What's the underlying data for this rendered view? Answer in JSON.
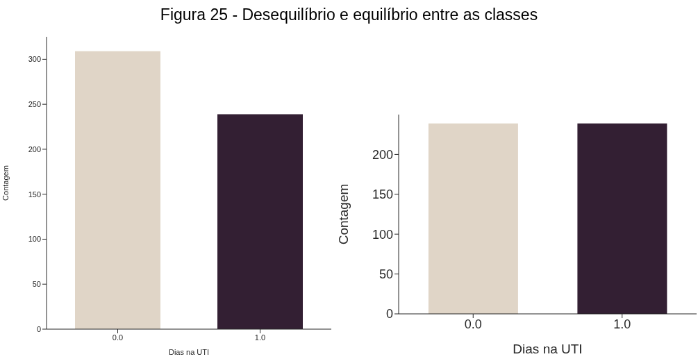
{
  "chart_data": [
    {
      "type": "bar",
      "title": "Figura 25 - Desequilíbrio e equilíbrio entre as classes",
      "xlabel": "Dias na UTI",
      "ylabel": "Contagem",
      "categories": [
        "0.0",
        "1.0"
      ],
      "values": [
        309,
        239
      ],
      "colors": [
        "#e0d5c7",
        "#331f33"
      ],
      "ylim": [
        0,
        325
      ],
      "yticks": [
        0,
        50,
        100,
        150,
        200,
        250,
        300
      ],
      "grid": false,
      "legend": false
    },
    {
      "type": "bar",
      "xlabel": "Dias na UTI",
      "ylabel": "Contagem",
      "categories": [
        "0.0",
        "1.0"
      ],
      "values": [
        239,
        239
      ],
      "colors": [
        "#e0d5c7",
        "#331f33"
      ],
      "ylim": [
        0,
        250
      ],
      "yticks": [
        0,
        50,
        100,
        150,
        200
      ],
      "grid": false,
      "legend": false
    }
  ]
}
